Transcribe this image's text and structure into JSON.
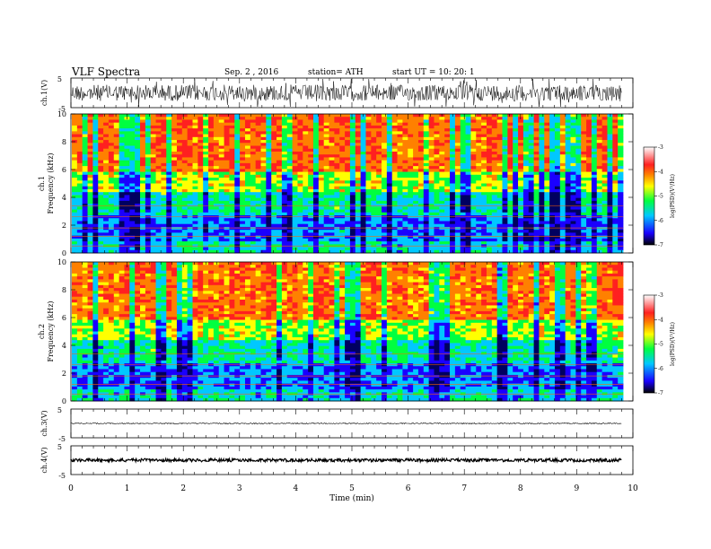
{
  "header": {
    "title": "VLF Spectra",
    "date": "Sep. 2 , 2016",
    "station": "station= ATH",
    "start": "start UT =   10: 20: 1"
  },
  "chart_data": [
    {
      "type": "line",
      "panel": "ch1-waveform",
      "ylabel": "ch.1(V)",
      "yticks": [
        "5",
        "-5"
      ],
      "ylim": [
        -5,
        5
      ],
      "xlim": [
        0,
        10
      ],
      "trace_end_min": 9.8
    },
    {
      "type": "heatmap",
      "panel": "ch1-spectrogram",
      "ylabel_channel": "ch.1",
      "ylabel": "Frequency (kHz)",
      "yticks": [
        "0",
        "2",
        "4",
        "6",
        "8",
        "10"
      ],
      "ylim": [
        0,
        10
      ],
      "xlim": [
        0,
        10
      ],
      "colorbar": {
        "label": "log(PSD)(V²/Hz)",
        "ticks": [
          "-3",
          "-4",
          "-5",
          "-6",
          "-7"
        ],
        "range": [
          -7,
          -3
        ]
      }
    },
    {
      "type": "heatmap",
      "panel": "ch2-spectrogram",
      "ylabel_channel": "ch.2",
      "ylabel": "Frequency (kHz)",
      "yticks": [
        "0",
        "2",
        "4",
        "6",
        "8",
        "10"
      ],
      "ylim": [
        0,
        10
      ],
      "xlim": [
        0,
        10
      ],
      "colorbar": {
        "label": "log(PSD)(V²/Hz)",
        "ticks": [
          "-3",
          "-4",
          "-5",
          "-6",
          "-7"
        ],
        "range": [
          -7,
          -3
        ]
      }
    },
    {
      "type": "line",
      "panel": "ch3-waveform",
      "ylabel": "ch.3(V)",
      "yticks": [
        "5",
        "-5"
      ],
      "ylim": [
        -5,
        5
      ],
      "xlim": [
        0,
        10
      ],
      "trace_end_min": 9.8
    },
    {
      "type": "line",
      "panel": "ch4-waveform",
      "ylabel": "ch.4(V)",
      "yticks": [
        "5",
        "-5"
      ],
      "ylim": [
        -5,
        5
      ],
      "xlim": [
        0,
        10
      ],
      "trace_end_min": 9.8
    }
  ],
  "xaxis": {
    "label": "Time (min)",
    "ticks": [
      "0",
      "1",
      "2",
      "3",
      "4",
      "5",
      "6",
      "7",
      "8",
      "9",
      "10"
    ]
  },
  "colors": {
    "colormap": [
      "#000000",
      "#1a00ff",
      "#00e5ff",
      "#00ff40",
      "#ffff00",
      "#ff2a00",
      "#ffffff"
    ]
  }
}
